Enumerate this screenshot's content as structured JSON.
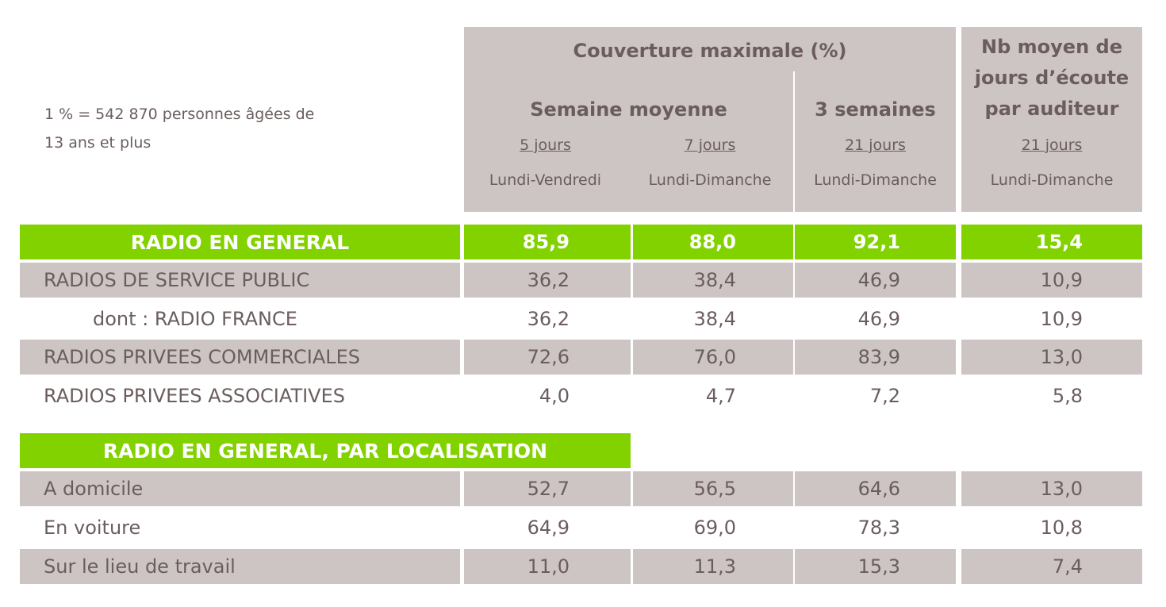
{
  "note": [
    "1 % = 542 870 personnes âgées de",
    "13 ans et plus"
  ],
  "header": {
    "coverage": "Couverture maximale (%)",
    "avg_week": "Semaine moyenne",
    "three_weeks": "3 semaines",
    "nb_days": [
      "Nb moyen de",
      "jours d’écoute",
      "par auditeur"
    ],
    "cols": [
      {
        "days": "5 jours",
        "range": "Lundi-Vendredi"
      },
      {
        "days": "7 jours",
        "range": "Lundi-Dimanche"
      },
      {
        "days": "21 jours",
        "range": "Lundi-Dimanche"
      },
      {
        "days": "21 jours",
        "range": "Lundi-Dimanche"
      }
    ]
  },
  "rows": [
    {
      "label": "RADIO EN GENERAL",
      "values": [
        "85,9",
        "88,0",
        "92,1",
        "15,4"
      ],
      "style": "green"
    },
    {
      "label": "RADIOS DE SERVICE PUBLIC",
      "values": [
        "36,2",
        "38,4",
        "46,9",
        "10,9"
      ],
      "style": "gray"
    },
    {
      "label": "dont : RADIO FRANCE",
      "values": [
        "36,2",
        "38,4",
        "46,9",
        "10,9"
      ],
      "style": "white",
      "indent": true
    },
    {
      "label": "RADIOS PRIVEES COMMERCIALES",
      "values": [
        "72,6",
        "76,0",
        "83,9",
        "13,0"
      ],
      "style": "gray"
    },
    {
      "label": "RADIOS PRIVEES ASSOCIATIVES",
      "values": [
        "4,0",
        "4,7",
        "7,2",
        "5,8"
      ],
      "style": "white"
    }
  ],
  "section": "RADIO EN GENERAL, PAR LOCALISATION",
  "loc_rows": [
    {
      "label": "A domicile",
      "values": [
        "52,7",
        "56,5",
        "64,6",
        "13,0"
      ],
      "style": "gray"
    },
    {
      "label": "En voiture",
      "values": [
        "64,9",
        "69,0",
        "78,3",
        "10,8"
      ],
      "style": "white"
    },
    {
      "label": "Sur le lieu de travail",
      "values": [
        "11,0",
        "11,3",
        "15,3",
        "7,4"
      ],
      "style": "gray"
    }
  ]
}
